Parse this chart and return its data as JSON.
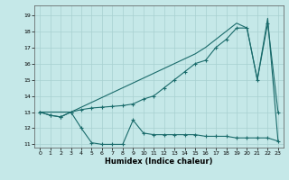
{
  "xlabel": "Humidex (Indice chaleur)",
  "background_color": "#c5e8e8",
  "line_color": "#1a6b6b",
  "grid_color": "#a8d0d0",
  "ylim": [
    10.8,
    19.6
  ],
  "xlim": [
    -0.5,
    23.5
  ],
  "yticks": [
    11,
    12,
    13,
    14,
    15,
    16,
    17,
    18,
    19
  ],
  "xticks": [
    0,
    1,
    2,
    3,
    4,
    5,
    6,
    7,
    8,
    9,
    10,
    11,
    12,
    13,
    14,
    15,
    16,
    17,
    18,
    19,
    20,
    21,
    22,
    23
  ],
  "line1_x": [
    0,
    1,
    2,
    3,
    4,
    5,
    6,
    7,
    8,
    9,
    10,
    11,
    12,
    13,
    14,
    15,
    16,
    17,
    18,
    19,
    20,
    21,
    22,
    23
  ],
  "line1_y": [
    13.0,
    12.8,
    12.7,
    13.0,
    12.0,
    11.1,
    11.0,
    11.0,
    11.0,
    12.5,
    11.7,
    11.6,
    11.6,
    11.6,
    11.6,
    11.6,
    11.5,
    11.5,
    11.5,
    11.4,
    11.4,
    11.4,
    11.4,
    11.2
  ],
  "line2_x": [
    0,
    1,
    2,
    3,
    4,
    5,
    6,
    7,
    8,
    9,
    10,
    11,
    12,
    13,
    14,
    15,
    16,
    17,
    18,
    19,
    20,
    21,
    22,
    23
  ],
  "line2_y": [
    13.0,
    12.8,
    12.7,
    13.0,
    13.15,
    13.25,
    13.3,
    13.35,
    13.4,
    13.5,
    13.8,
    14.0,
    14.5,
    15.0,
    15.5,
    16.0,
    16.2,
    17.0,
    17.5,
    18.2,
    18.2,
    15.0,
    18.5,
    13.0
  ],
  "line3_x": [
    0,
    3,
    15,
    16,
    17,
    18,
    19,
    20,
    21,
    22,
    23
  ],
  "line3_y": [
    13.0,
    13.0,
    16.6,
    17.0,
    17.5,
    18.0,
    18.5,
    18.2,
    15.0,
    18.8,
    11.2
  ]
}
